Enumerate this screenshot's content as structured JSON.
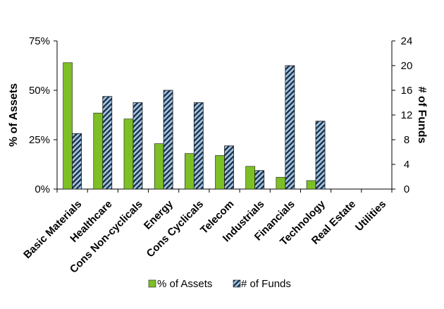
{
  "chart_data": {
    "type": "bar",
    "categories": [
      "Basic Materials",
      "Healthcare",
      "Cons Non-cyclicals",
      "Energy",
      "Cons Cyclicals",
      "Telecom",
      "Industrials",
      "Financials",
      "Technology",
      "Real Estate",
      "Utilities"
    ],
    "series": [
      {
        "name": "% of Assets",
        "axis": "left",
        "values": [
          64,
          38.5,
          35.5,
          23,
          18,
          17,
          11.5,
          6,
          4.3,
          0,
          0
        ],
        "color": "#7dbf26"
      },
      {
        "name": "# of Funds",
        "axis": "right",
        "values": [
          9,
          15,
          14,
          16,
          14,
          7,
          3,
          20,
          11,
          0,
          0
        ],
        "color": "#9ec3e6",
        "pattern": "diagonal-stripes"
      }
    ],
    "ylabel": "% of Assets",
    "y2label": "# of Funds",
    "ylim": [
      0,
      75
    ],
    "y2lim": [
      0,
      24
    ],
    "yticks": [
      "0%",
      "25%",
      "50%",
      "75%"
    ],
    "y2ticks": [
      "0",
      "4",
      "8",
      "12",
      "16",
      "20",
      "24"
    ],
    "grid": false,
    "legend_position": "bottom"
  }
}
